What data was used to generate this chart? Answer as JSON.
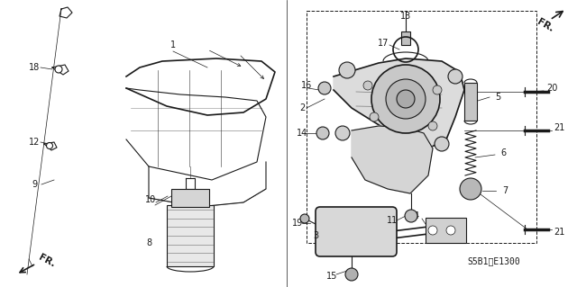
{
  "bg_color": "#ffffff",
  "line_color": "#1a1a1a",
  "ref_code": "S5B1-E1300",
  "figsize": [
    6.4,
    3.19
  ],
  "dpi": 100
}
